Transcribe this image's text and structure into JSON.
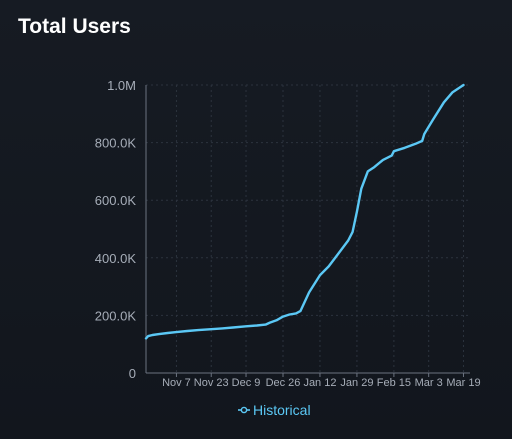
{
  "title": "Total Users",
  "chart_data": {
    "type": "line",
    "title": "Total Users",
    "xlabel": "",
    "ylabel": "",
    "ylim": [
      0,
      1000000
    ],
    "yticks": [
      {
        "value": 0,
        "label": "0"
      },
      {
        "value": 200000,
        "label": "200.0K"
      },
      {
        "value": 400000,
        "label": "400.0K"
      },
      {
        "value": 600000,
        "label": "600.0K"
      },
      {
        "value": 800000,
        "label": "800.0K"
      },
      {
        "value": 1000000,
        "label": "1.0M"
      }
    ],
    "x_start": "Oct 24",
    "x_end": "Mar 22",
    "xticks": [
      "Nov 7",
      "Nov 23",
      "Dec 9",
      "Dec 26",
      "Jan 12",
      "Jan 29",
      "Feb 15",
      "Mar 3",
      "Mar 19"
    ],
    "grid": true,
    "legend_position": "bottom-center",
    "line_color": "#5bc8f5",
    "series": [
      {
        "name": "Historical",
        "points": [
          [
            "Oct 24",
            120000
          ],
          [
            "Oct 25",
            128000
          ],
          [
            "Oct 27",
            132000
          ],
          [
            "Oct 30",
            135000
          ],
          [
            "Nov 3",
            139000
          ],
          [
            "Nov 7",
            142000
          ],
          [
            "Nov 12",
            146000
          ],
          [
            "Nov 17",
            149000
          ],
          [
            "Nov 23",
            152000
          ],
          [
            "Nov 28",
            155000
          ],
          [
            "Dec 3",
            158000
          ],
          [
            "Dec 9",
            162000
          ],
          [
            "Dec 14",
            165000
          ],
          [
            "Dec 18",
            168000
          ],
          [
            "Dec 20",
            175000
          ],
          [
            "Dec 23",
            183000
          ],
          [
            "Dec 26",
            196000
          ],
          [
            "Dec 29",
            203000
          ],
          [
            "Jan 1",
            207000
          ],
          [
            "Jan 3",
            215000
          ],
          [
            "Jan 7",
            280000
          ],
          [
            "Jan 12",
            340000
          ],
          [
            "Jan 16",
            370000
          ],
          [
            "Jan 20",
            410000
          ],
          [
            "Jan 25",
            460000
          ],
          [
            "Jan 27",
            490000
          ],
          [
            "Jan 29",
            560000
          ],
          [
            "Jan 31",
            640000
          ],
          [
            "Feb 3",
            700000
          ],
          [
            "Feb 6",
            715000
          ],
          [
            "Feb 10",
            740000
          ],
          [
            "Feb 14",
            755000
          ],
          [
            "Feb 15",
            770000
          ],
          [
            "Feb 20",
            782000
          ],
          [
            "Feb 25",
            796000
          ],
          [
            "Feb 28",
            806000
          ],
          [
            "Mar 1",
            830000
          ],
          [
            "Mar 5",
            880000
          ],
          [
            "Mar 10",
            940000
          ],
          [
            "Mar 14",
            975000
          ],
          [
            "Mar 19",
            1000000
          ]
        ]
      }
    ]
  }
}
